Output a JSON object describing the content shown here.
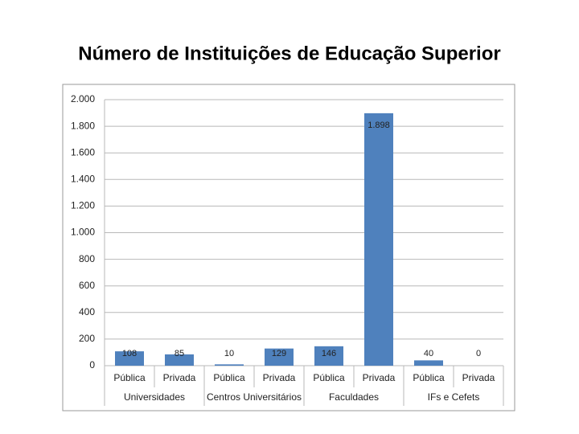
{
  "chart_data": {
    "type": "bar",
    "title": "Número de Instituições de Educação Superior",
    "categories": [
      "Pública",
      "Privada",
      "Pública",
      "Privada",
      "Pública",
      "Privada",
      "Pública",
      "Privada"
    ],
    "category_groups": [
      "Universidades",
      "Centros Universitários",
      "Faculdades",
      "IFs e Cefets"
    ],
    "values": [
      108,
      85,
      10,
      129,
      146,
      1898,
      40,
      0
    ],
    "value_labels": [
      "108",
      "85",
      "10",
      "129",
      "146",
      "1.898",
      "40",
      "0"
    ],
    "color": "#4f81bd",
    "ylim": [
      0,
      2000
    ],
    "yticks": [
      0,
      200,
      400,
      600,
      800,
      {
        "value": 1000,
        "label": "1.000"
      },
      {
        "value": 1200,
        "label": "1.200"
      },
      {
        "value": 1400,
        "label": "1.400"
      },
      {
        "value": 1600,
        "label": "1.600"
      },
      {
        "value": 1800,
        "label": "1.800"
      },
      {
        "value": 2000,
        "label": "2.000"
      }
    ],
    "grid": true
  }
}
